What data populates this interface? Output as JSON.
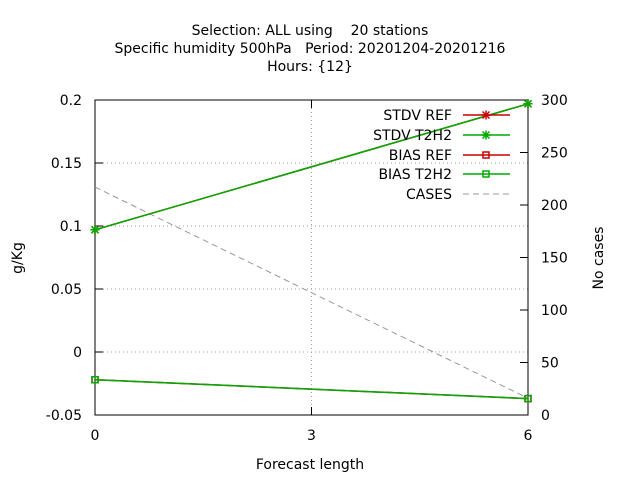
{
  "chart_data": {
    "type": "line",
    "title_lines": [
      "Selection: ALL using    20 stations",
      "Specific humidity 500hPa   Period: 20201204-20201216",
      "Hours: {12}"
    ],
    "xlabel": "Forecast length",
    "ylabel": "g/Kg",
    "y2label": "No cases",
    "x_ticks": [
      0,
      3,
      6
    ],
    "y_ticks": [
      -0.05,
      0,
      0.05,
      0.1,
      0.15,
      0.2
    ],
    "y_tick_labels": [
      "-0.05",
      "0",
      "0.05",
      "0.1",
      "0.15",
      "0.2"
    ],
    "y2_ticks": [
      0,
      50,
      100,
      150,
      200,
      250,
      300
    ],
    "xlim": [
      0,
      6
    ],
    "ylim": [
      -0.05,
      0.2
    ],
    "y2lim": [
      0,
      300
    ],
    "grid": true,
    "legend_position": "top-right",
    "series": [
      {
        "name": "STDV REF",
        "axis": "y",
        "color": "#cc0000",
        "marker": "x",
        "x": [
          0,
          6
        ],
        "y": [
          0.097,
          0.197
        ]
      },
      {
        "name": "STDV T2H2",
        "axis": "y",
        "color": "#00aa00",
        "marker": "x",
        "x": [
          0,
          6
        ],
        "y": [
          0.097,
          0.197
        ]
      },
      {
        "name": "BIAS REF",
        "axis": "y",
        "color": "#cc0000",
        "marker": "square",
        "x": [
          0,
          6
        ],
        "y": [
          -0.022,
          -0.037
        ]
      },
      {
        "name": "BIAS T2H2",
        "axis": "y",
        "color": "#00aa00",
        "marker": "square",
        "x": [
          0,
          6
        ],
        "y": [
          -0.022,
          -0.037
        ]
      },
      {
        "name": "CASES",
        "axis": "y2",
        "color": "#999999",
        "marker": "none",
        "dashed": true,
        "x": [
          0,
          6
        ],
        "y": [
          217,
          16
        ]
      }
    ]
  }
}
